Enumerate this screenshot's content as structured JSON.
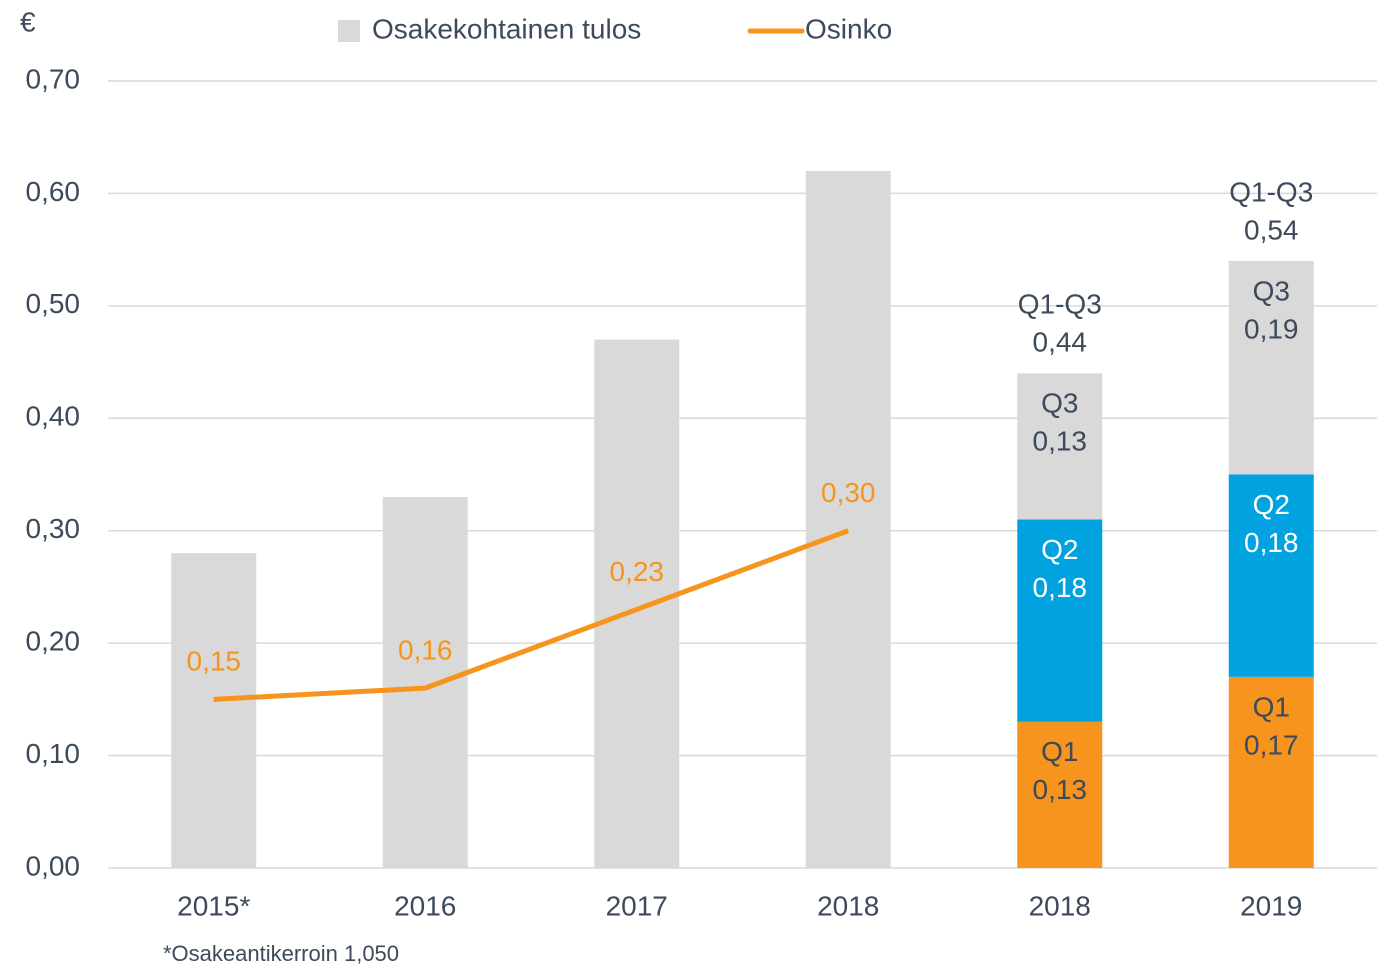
{
  "chart_data": {
    "type": "bar",
    "y_unit": "€",
    "footnote": "*Osakeantikerroin 1,050",
    "categories": [
      "2015*",
      "2016",
      "2017",
      "2018",
      "2018",
      "2019"
    ],
    "ylim": [
      0,
      0.7
    ],
    "yticks": [
      {
        "value": 0,
        "label": "0,00"
      },
      {
        "value": 0.1,
        "label": "0,10"
      },
      {
        "value": 0.2,
        "label": "0,20"
      },
      {
        "value": 0.3,
        "label": "0,30"
      },
      {
        "value": 0.4,
        "label": "0,40"
      },
      {
        "value": 0.5,
        "label": "0,50"
      },
      {
        "value": 0.6,
        "label": "0,60"
      },
      {
        "value": 0.7,
        "label": "0,70"
      }
    ],
    "grid": true,
    "series": [
      {
        "name": "Osakekohtainen tulos",
        "type": "bar",
        "color": "#d9d9d9",
        "in_legend": true,
        "values": [
          0.28,
          0.33,
          0.47,
          0.62,
          null,
          null
        ]
      },
      {
        "name": "Q1",
        "type": "bar",
        "color": "#f7941d",
        "label_color": "#3d4a5c",
        "in_legend": false,
        "values": [
          null,
          null,
          null,
          null,
          0.13,
          0.17
        ],
        "value_labels": [
          null,
          null,
          null,
          null,
          "0,13",
          "0,17"
        ]
      },
      {
        "name": "Q2",
        "type": "bar",
        "color": "#00a3e0",
        "label_color": "#ffffff",
        "in_legend": false,
        "values": [
          null,
          null,
          null,
          null,
          0.18,
          0.18
        ],
        "value_labels": [
          null,
          null,
          null,
          null,
          "0,18",
          "0,18"
        ]
      },
      {
        "name": "Q3",
        "type": "bar",
        "color": "#d9d9d9",
        "label_color": "#3d4a5c",
        "in_legend": false,
        "values": [
          null,
          null,
          null,
          null,
          0.13,
          0.19
        ],
        "value_labels": [
          null,
          null,
          null,
          null,
          "0,13",
          "0,19"
        ]
      },
      {
        "name": "Osinko",
        "type": "line",
        "color": "#f7941d",
        "label_color": "#f7941d",
        "in_legend": true,
        "values": [
          0.15,
          0.16,
          0.23,
          0.3,
          null,
          null
        ],
        "value_labels": [
          "0,15",
          "0,16",
          "0,23",
          "0,30",
          null,
          null
        ]
      }
    ],
    "totals": {
      "name": "Q1-Q3",
      "values": [
        null,
        null,
        null,
        null,
        0.44,
        0.54
      ],
      "value_labels": [
        null,
        null,
        null,
        null,
        "0,44",
        "0,54"
      ]
    }
  }
}
